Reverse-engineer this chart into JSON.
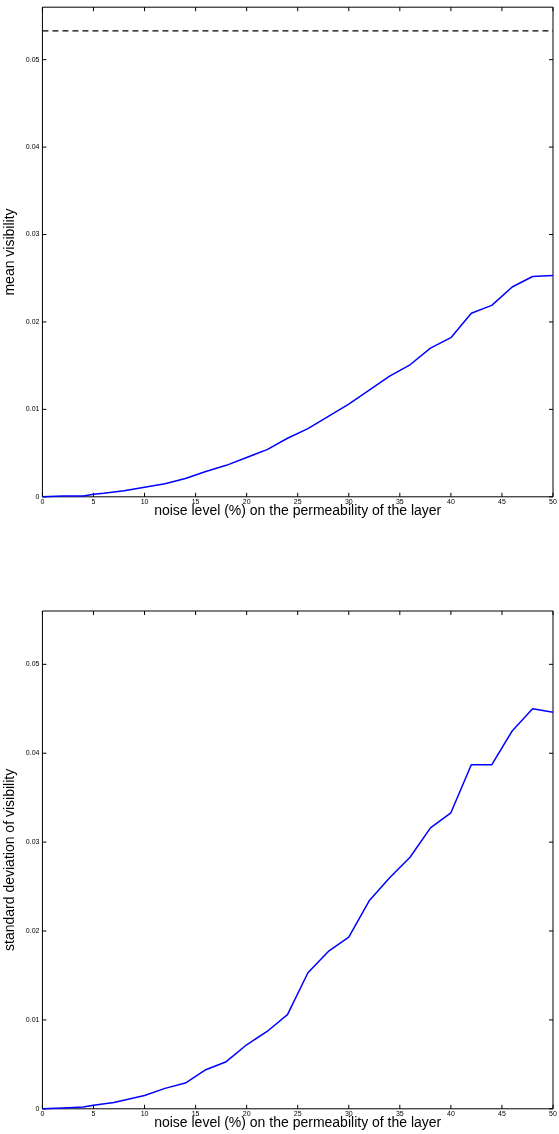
{
  "chart_data": [
    {
      "type": "line",
      "xlabel": "noise level (%) on the permeability of the layer",
      "ylabel": "mean visibility",
      "x": [
        0,
        2,
        4,
        5,
        6,
        8,
        10,
        12,
        14,
        16,
        18,
        20,
        22,
        24,
        26,
        28,
        30,
        32,
        34,
        36,
        38,
        40,
        42,
        44,
        46,
        48,
        50
      ],
      "series": [
        {
          "color": "#0000ff",
          "values": [
            0,
            0.0001,
            0.0001,
            0.0003,
            0.0004,
            0.0007,
            0.0011,
            0.0015,
            0.0021,
            0.0029,
            0.0036,
            0.0045,
            0.0054,
            0.0067,
            0.0078,
            0.0092,
            0.0106,
            0.0122,
            0.0138,
            0.0151,
            0.017,
            0.0182,
            0.021,
            0.0219,
            0.024,
            0.0252,
            0.0253
          ]
        }
      ],
      "xlim": [
        0,
        50
      ],
      "xticks": [
        0,
        5,
        10,
        15,
        20,
        25,
        30,
        35,
        40,
        45,
        50
      ],
      "ylim": [
        0,
        0.056
      ],
      "yticks": [
        0,
        0.01,
        0.02,
        0.03,
        0.04,
        0.05
      ],
      "ref_lines": [
        {
          "axis": "y",
          "value": 0.0533,
          "color": "#000000",
          "line_style": "dashed"
        }
      ],
      "grid": false,
      "legend": false,
      "marker": "none",
      "line_style": "solid"
    },
    {
      "type": "line",
      "xlabel": "noise level (%) on the permeability of the layer",
      "ylabel": "standard deviation of visibility",
      "x": [
        0,
        2,
        4,
        5,
        7,
        10,
        12,
        14,
        16,
        18,
        20,
        22,
        24,
        26,
        28,
        30,
        32,
        34,
        36,
        38,
        40,
        42,
        44,
        46,
        48,
        50
      ],
      "series": [
        {
          "color": "#0000ff",
          "values": [
            0,
            0.0001,
            0.0002,
            0.0004,
            0.0007,
            0.0015,
            0.0023,
            0.0029,
            0.0044,
            0.0053,
            0.0072,
            0.0087,
            0.0106,
            0.0153,
            0.0177,
            0.0193,
            0.0234,
            0.026,
            0.0283,
            0.0316,
            0.0333,
            0.0387,
            0.0387,
            0.0425,
            0.045,
            0.0446
          ]
        }
      ],
      "xlim": [
        0,
        50
      ],
      "xticks": [
        0,
        5,
        10,
        15,
        20,
        25,
        30,
        35,
        40,
        45,
        50
      ],
      "ylim": [
        0,
        0.056
      ],
      "yticks": [
        0,
        0.01,
        0.02,
        0.03,
        0.04,
        0.05
      ],
      "grid": false,
      "legend": false,
      "marker": "none",
      "line_style": "solid"
    }
  ]
}
